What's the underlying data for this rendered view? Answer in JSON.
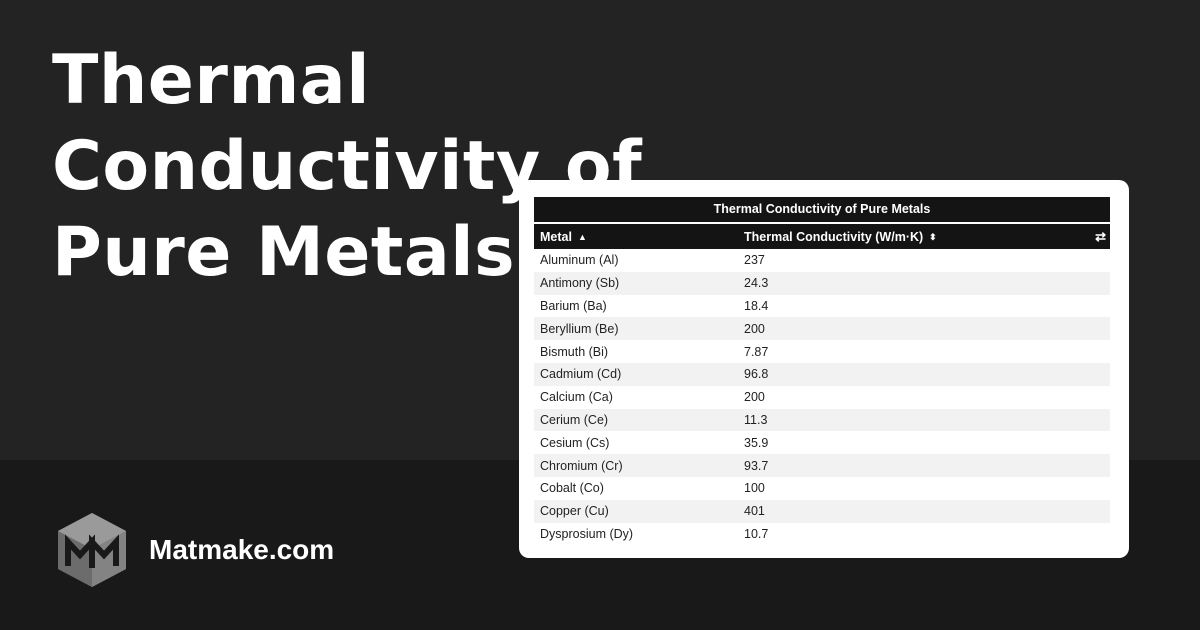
{
  "headline": {
    "line1": "Thermal Conductivity of",
    "line2": "Pure Metals"
  },
  "brand": {
    "name": "Matmake.com",
    "logo_icon": "cube-m-logo-icon"
  },
  "table": {
    "caption": "Thermal Conductivity of Pure Metals",
    "columns": [
      {
        "label": "Metal",
        "sort_icon": "sort-ascending-icon"
      },
      {
        "label": "Thermal Conductivity (W/m·K)",
        "sort_icon": "sort-both-icon"
      }
    ],
    "toggle_icon": "swap-arrows-icon",
    "rows": [
      {
        "metal": "Aluminum (Al)",
        "value": "237"
      },
      {
        "metal": "Antimony (Sb)",
        "value": "24.3"
      },
      {
        "metal": "Barium (Ba)",
        "value": "18.4"
      },
      {
        "metal": "Beryllium (Be)",
        "value": "200"
      },
      {
        "metal": "Bismuth (Bi)",
        "value": "7.87"
      },
      {
        "metal": "Cadmium (Cd)",
        "value": "96.8"
      },
      {
        "metal": "Calcium (Ca)",
        "value": "200"
      },
      {
        "metal": "Cerium (Ce)",
        "value": "11.3"
      },
      {
        "metal": "Cesium (Cs)",
        "value": "35.9"
      },
      {
        "metal": "Chromium (Cr)",
        "value": "93.7"
      },
      {
        "metal": "Cobalt (Co)",
        "value": "100"
      },
      {
        "metal": "Copper (Cu)",
        "value": "401"
      },
      {
        "metal": "Dysprosium (Dy)",
        "value": "10.7"
      }
    ]
  },
  "colors": {
    "background_top": "#232324",
    "background_bottom": "#19191a",
    "table_header": "#141414",
    "row_stripe": "#f2f2f2",
    "logo_gray": "#7a7a7a"
  }
}
